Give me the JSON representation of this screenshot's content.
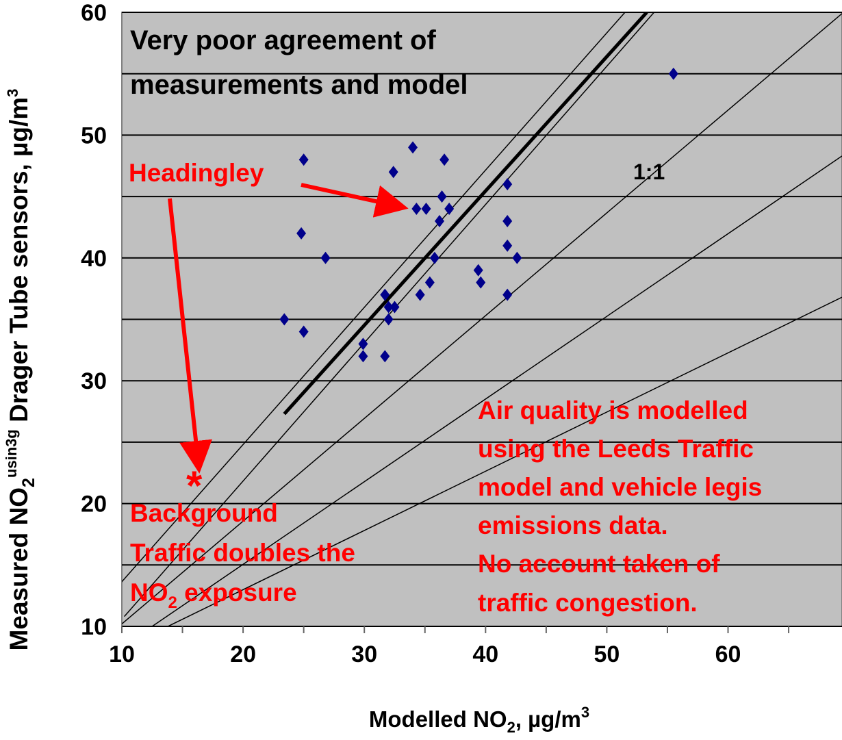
{
  "chart_data": {
    "type": "scatter",
    "x_label": {
      "a": "Modelled NO",
      "b": "2",
      "c": ", µg/m",
      "d": "3"
    },
    "y_label": {
      "a": "Measured NO",
      "b": "2",
      "c": "usin3g",
      "d": " Drager Tube sensors, µg/m",
      "e": "3"
    },
    "xlim": [
      10,
      69.4
    ],
    "ylim": [
      10,
      60
    ],
    "xticks": [
      10,
      20,
      30,
      40,
      50,
      60
    ],
    "minor_xticks": [
      15,
      25,
      35,
      45,
      55,
      65
    ],
    "yticks": [
      10,
      20,
      30,
      40,
      50,
      60
    ],
    "minor_yticks": [
      15,
      25,
      35,
      45,
      55
    ],
    "grid": true,
    "background": "#c0c0c0",
    "series": [
      {
        "color": "#00008b",
        "x": [
          23.4,
          25,
          24.8,
          25,
          26.8,
          29.9,
          29.9,
          31.7,
          31.7,
          32,
          32,
          32.5,
          32.4,
          34,
          34.3,
          35.1,
          34.6,
          35.4,
          35.8,
          36.2,
          36.6,
          36.4,
          37,
          39.4,
          39.6,
          41.8,
          41.8,
          41.8,
          41.8,
          42.6,
          55.5
        ],
        "values": [
          35,
          48,
          42,
          34,
          40,
          33,
          32,
          32,
          37,
          36,
          35,
          36,
          47,
          49,
          44,
          44,
          37,
          38,
          40,
          43,
          48,
          45,
          44,
          39,
          38,
          46,
          43,
          41,
          37,
          40,
          55
        ]
      }
    ],
    "lines": [
      {
        "x": [
          9.7,
          51.5
        ],
        "y": [
          13.3,
          60
        ],
        "width": 1.5
      },
      {
        "x": [
          10.2,
          53.9
        ],
        "y": [
          10.8,
          60
        ],
        "width": 1.5
      },
      {
        "x": [
          23.4,
          53.3
        ],
        "y": [
          27.3,
          60
        ],
        "width": 5
      },
      {
        "x": [
          10,
          69.4
        ],
        "y": [
          10.2,
          59.9
        ],
        "width": 1.5
      },
      {
        "x": [
          12.5,
          69.4
        ],
        "y": [
          10,
          48.3
        ],
        "width": 1.5
      },
      {
        "x": [
          13.8,
          69.4
        ],
        "y": [
          10,
          36.8
        ],
        "width": 1.5
      }
    ],
    "annotations": {
      "agreement": [
        "Very poor agreement of",
        "measurements and model"
      ],
      "one_to_one": "1:1",
      "headingley": "Headingley",
      "asterisk": "*",
      "background": {
        "line1": "Background",
        "line2": "Traffic doubles the",
        "line3a": "NO",
        "line3b": "2",
        "line3c": " exposure"
      },
      "model": [
        "Air quality is modelled",
        "using the Leeds Traffic",
        "model and vehicle legis",
        "emissions data.",
        "No account taken of",
        "traffic congestion."
      ]
    }
  }
}
